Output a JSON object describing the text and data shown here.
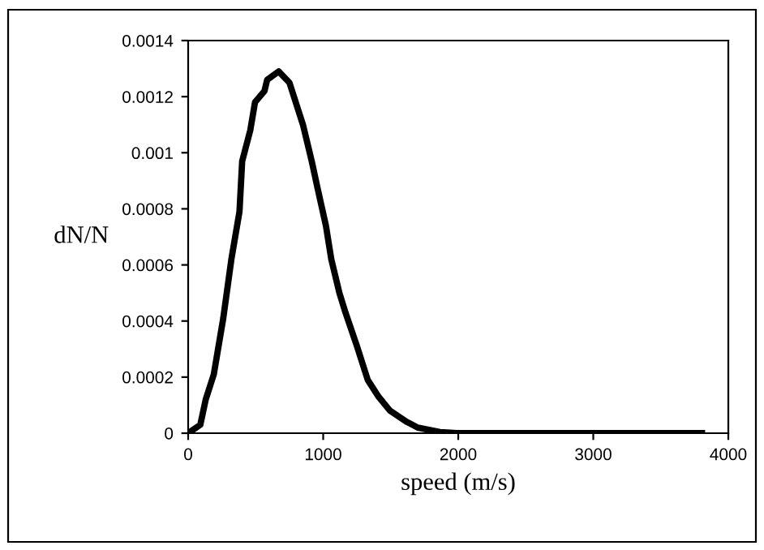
{
  "chart_data": {
    "type": "line",
    "xlabel": "speed (m/s)",
    "ylabel": "dN/N",
    "series": [
      {
        "color": "#000000",
        "x": [
          0,
          90,
          130,
          190,
          260,
          320,
          380,
          400,
          460,
          495,
          565,
          585,
          670,
          750,
          850,
          915,
          960,
          1020,
          1060,
          1120,
          1165,
          1250,
          1330,
          1410,
          1495,
          1620,
          1700,
          1865,
          1990,
          2500,
          3000,
          3500,
          3805
        ],
        "values": [
          0,
          3e-05,
          0.00012,
          0.00021,
          0.00041,
          0.00062,
          0.00079,
          0.00097,
          0.00108,
          0.00118,
          0.00122,
          0.00126,
          0.00129,
          0.00125,
          0.0011,
          0.00097,
          0.00087,
          0.00074,
          0.00062,
          0.0005,
          0.00043,
          0.00031,
          0.00019,
          0.00013,
          8e-05,
          4e-05,
          2e-05,
          4e-06,
          0,
          0,
          0,
          0,
          0
        ]
      }
    ],
    "xlim": [
      0,
      4000
    ],
    "xticks": [
      0,
      1000,
      2000,
      3000,
      4000
    ],
    "ylim": [
      0,
      0.0014
    ],
    "yticks": [
      0,
      0.0002,
      0.0004,
      0.0006,
      0.0008,
      0.001,
      0.0012,
      0.0014
    ],
    "grid": false,
    "legend": false,
    "marker": "none",
    "line_style": "solid"
  }
}
